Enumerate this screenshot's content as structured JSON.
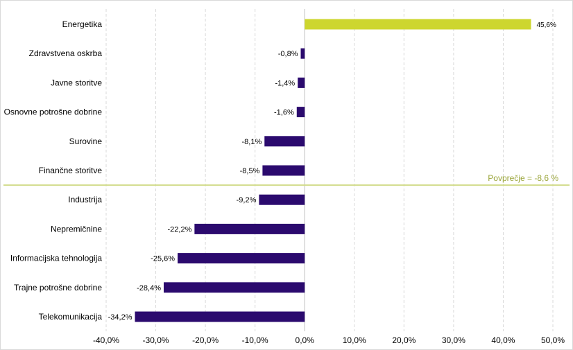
{
  "chart_data": {
    "type": "bar",
    "orientation": "horizontal",
    "categories": [
      "Energetika",
      "Zdravstvena oskrba",
      "Javne storitve",
      "Osnovne potrošne dobrine",
      "Surovine",
      "Finančne storitve",
      "Industrija",
      "Nepremičnine",
      "Informacijska tehnologija",
      "Trajne potrošne dobrine",
      "Telekomunikacija"
    ],
    "values": [
      45.6,
      -0.8,
      -1.4,
      -1.6,
      -8.1,
      -8.5,
      -9.2,
      -22.2,
      -25.6,
      -28.4,
      -34.2
    ],
    "value_labels": [
      "45,6%",
      "-0,8%",
      "-1,4%",
      "-1,6%",
      "-8,1%",
      "-8,5%",
      "-9,2%",
      "-22,2%",
      "-25,6%",
      "-28,4%",
      "-34,2%"
    ],
    "xlim": [
      -40,
      50
    ],
    "x_ticks": [
      -40,
      -30,
      -20,
      -10,
      0,
      10,
      20,
      30,
      40,
      50
    ],
    "x_tick_labels": [
      "-40,0%",
      "-30,0%",
      "-20,0%",
      "-10,0%",
      "0,0%",
      "10,0%",
      "20,0%",
      "30,0%",
      "40,0%",
      "50,0%"
    ],
    "grid": "vertical dashed",
    "colors": {
      "positive": "#cdd62f",
      "negative": "#2b0a6e",
      "average_line": "#d2dc8c",
      "average_label": "#9aa53a",
      "grid": "#d9d9d9",
      "text": "#000000"
    },
    "average": {
      "label": "Povprečje = -8,6 %",
      "value": -8.6
    },
    "title": "",
    "xlabel": "",
    "ylabel": ""
  }
}
